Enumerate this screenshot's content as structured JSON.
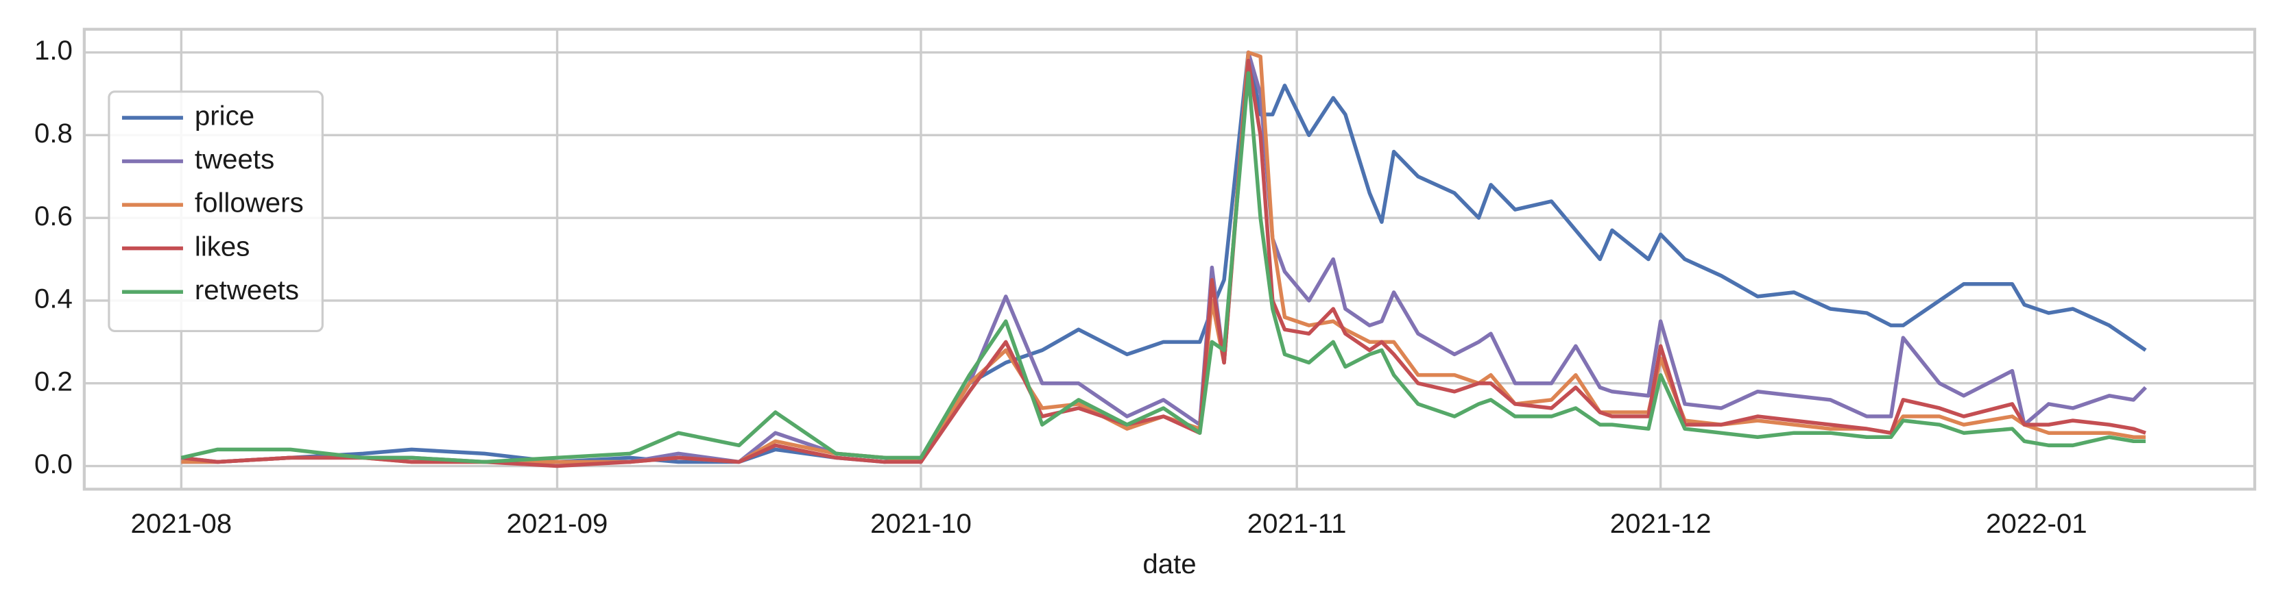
{
  "chart_data": {
    "type": "line",
    "xlabel": "date",
    "x": [
      "2021-08-01",
      "2021-08-04",
      "2021-08-10",
      "2021-08-16",
      "2021-08-20",
      "2021-08-26",
      "2021-09-01",
      "2021-09-07",
      "2021-09-11",
      "2021-09-16",
      "2021-09-19",
      "2021-09-24",
      "2021-09-28",
      "2021-10-01",
      "2021-10-05",
      "2021-10-08",
      "2021-10-11",
      "2021-10-14",
      "2021-10-18",
      "2021-10-21",
      "2021-10-24",
      "2021-10-25",
      "2021-10-26",
      "2021-10-28",
      "2021-10-29",
      "2021-10-30",
      "2021-10-31",
      "2021-11-02",
      "2021-11-04",
      "2021-11-05",
      "2021-11-07",
      "2021-11-08",
      "2021-11-09",
      "2021-11-11",
      "2021-11-14",
      "2021-11-16",
      "2021-11-17",
      "2021-11-19",
      "2021-11-22",
      "2021-11-24",
      "2021-11-26",
      "2021-11-27",
      "2021-11-30",
      "2021-12-01",
      "2021-12-03",
      "2021-12-06",
      "2021-12-09",
      "2021-12-12",
      "2021-12-15",
      "2021-12-18",
      "2021-12-20",
      "2021-12-21",
      "2021-12-24",
      "2021-12-26",
      "2021-12-30",
      "2021-12-31",
      "2022-01-02",
      "2022-01-04",
      "2022-01-07",
      "2022-01-09",
      "2022-01-10"
    ],
    "series": [
      {
        "name": "price",
        "color": "#4c72b0",
        "values": [
          0.02,
          0.01,
          0.02,
          0.03,
          0.04,
          0.03,
          0.01,
          0.02,
          0.01,
          0.01,
          0.04,
          0.02,
          0.01,
          0.02,
          0.2,
          0.25,
          0.28,
          0.33,
          0.27,
          0.3,
          0.3,
          0.38,
          0.45,
          1,
          0.85,
          0.85,
          0.92,
          0.8,
          0.89,
          0.85,
          0.66,
          0.59,
          0.76,
          0.7,
          0.66,
          0.6,
          0.68,
          0.62,
          0.64,
          0.57,
          0.5,
          0.57,
          0.5,
          0.56,
          0.5,
          0.46,
          0.41,
          0.42,
          0.38,
          0.37,
          0.34,
          0.34,
          0.4,
          0.44,
          0.44,
          0.39,
          0.37,
          0.38,
          0.34,
          0.3,
          0.28
        ]
      },
      {
        "name": "tweets",
        "color": "#8172b3",
        "values": [
          0.01,
          0.01,
          0.02,
          0.02,
          0.02,
          0.01,
          0.01,
          0.01,
          0.03,
          0.01,
          0.08,
          0.03,
          0.02,
          0.01,
          0.2,
          0.41,
          0.2,
          0.2,
          0.12,
          0.16,
          0.1,
          0.48,
          0.25,
          1,
          0.9,
          0.55,
          0.47,
          0.4,
          0.5,
          0.38,
          0.34,
          0.35,
          0.42,
          0.32,
          0.27,
          0.3,
          0.32,
          0.2,
          0.2,
          0.29,
          0.19,
          0.18,
          0.17,
          0.35,
          0.15,
          0.14,
          0.18,
          0.17,
          0.16,
          0.12,
          0.12,
          0.31,
          0.2,
          0.17,
          0.23,
          0.1,
          0.15,
          0.14,
          0.17,
          0.16,
          0.19
        ]
      },
      {
        "name": "followers",
        "color": "#dd8452",
        "values": [
          0.01,
          0.01,
          0.02,
          0.02,
          0.01,
          0.01,
          0.01,
          0.01,
          0.02,
          0.01,
          0.06,
          0.03,
          0.02,
          0.01,
          0.2,
          0.28,
          0.14,
          0.15,
          0.09,
          0.12,
          0.09,
          0.4,
          0.25,
          1,
          0.99,
          0.55,
          0.36,
          0.34,
          0.35,
          0.33,
          0.3,
          0.3,
          0.3,
          0.22,
          0.22,
          0.2,
          0.22,
          0.15,
          0.16,
          0.22,
          0.13,
          0.13,
          0.13,
          0.26,
          0.11,
          0.1,
          0.11,
          0.1,
          0.09,
          0.09,
          0.08,
          0.12,
          0.12,
          0.1,
          0.12,
          0.1,
          0.08,
          0.08,
          0.08,
          0.07,
          0.07
        ]
      },
      {
        "name": "likes",
        "color": "#c44e52",
        "values": [
          0.02,
          0.01,
          0.02,
          0.02,
          0.01,
          0.01,
          0,
          0.01,
          0.02,
          0.01,
          0.05,
          0.02,
          0.01,
          0.01,
          0.18,
          0.3,
          0.12,
          0.14,
          0.1,
          0.12,
          0.08,
          0.45,
          0.25,
          0.98,
          0.8,
          0.4,
          0.33,
          0.32,
          0.38,
          0.32,
          0.28,
          0.3,
          0.27,
          0.2,
          0.18,
          0.2,
          0.2,
          0.15,
          0.14,
          0.19,
          0.13,
          0.12,
          0.12,
          0.29,
          0.1,
          0.1,
          0.12,
          0.11,
          0.1,
          0.09,
          0.08,
          0.16,
          0.14,
          0.12,
          0.15,
          0.1,
          0.1,
          0.11,
          0.1,
          0.09,
          0.08
        ]
      },
      {
        "name": "retweets",
        "color": "#55a868",
        "values": [
          0.02,
          0.04,
          0.04,
          0.02,
          0.02,
          0.01,
          0.02,
          0.03,
          0.08,
          0.05,
          0.13,
          0.03,
          0.02,
          0.02,
          0.22,
          0.35,
          0.1,
          0.16,
          0.1,
          0.14,
          0.08,
          0.3,
          0.28,
          0.95,
          0.6,
          0.38,
          0.27,
          0.25,
          0.3,
          0.24,
          0.27,
          0.28,
          0.22,
          0.15,
          0.12,
          0.15,
          0.16,
          0.12,
          0.12,
          0.14,
          0.1,
          0.1,
          0.09,
          0.22,
          0.09,
          0.08,
          0.07,
          0.08,
          0.08,
          0.07,
          0.07,
          0.11,
          0.1,
          0.08,
          0.09,
          0.06,
          0.05,
          0.05,
          0.07,
          0.06,
          0.06
        ]
      }
    ],
    "xlim": [
      "2021-07-24",
      "2022-01-19"
    ],
    "xticks": [
      {
        "value": "2021-08-01",
        "label": "2021-08"
      },
      {
        "value": "2021-09-01",
        "label": "2021-09"
      },
      {
        "value": "2021-10-01",
        "label": "2021-10"
      },
      {
        "value": "2021-11-01",
        "label": "2021-11"
      },
      {
        "value": "2021-12-01",
        "label": "2021-12"
      },
      {
        "value": "2022-01-01",
        "label": "2022-01"
      }
    ],
    "ylim": [
      -0.056,
      1.056
    ],
    "yticks": [
      {
        "value": 0,
        "label": "0.0"
      },
      0.2,
      0.4,
      0.6,
      0.8,
      {
        "value": 1,
        "label": "1.0"
      }
    ],
    "grid": true,
    "legend": "upper left"
  }
}
